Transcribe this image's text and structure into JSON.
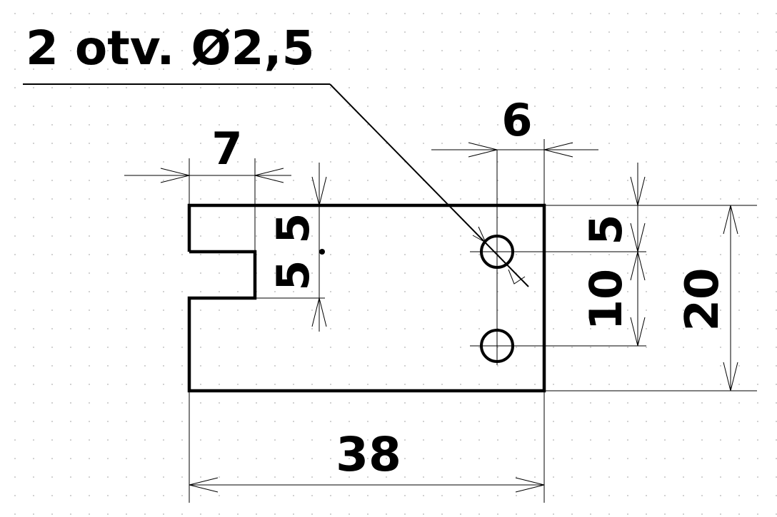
{
  "drawing": {
    "note": "2 otv. Ø2,5",
    "dimensions": {
      "top_left_width": "7",
      "top_right_width": "6",
      "slot_upper": "5",
      "slot_lower": "5",
      "right_upper": "5",
      "right_lower": "10",
      "total_height": "20",
      "total_width": "38"
    }
  }
}
